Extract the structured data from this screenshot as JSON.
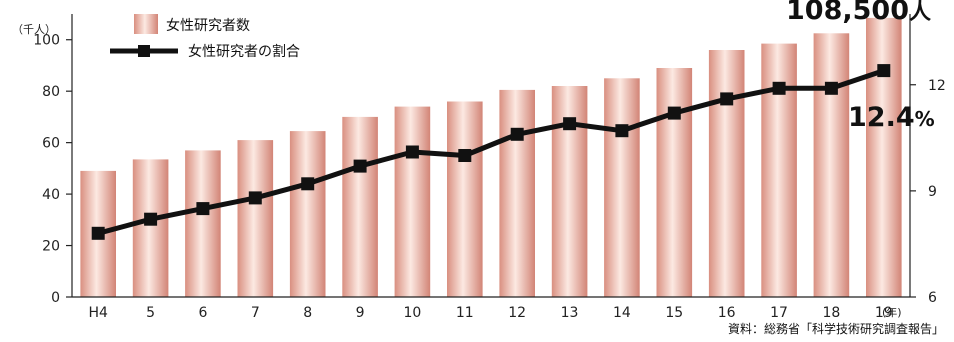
{
  "chart_data": {
    "type": "bar+line",
    "categories": [
      "H4",
      "5",
      "6",
      "7",
      "8",
      "9",
      "10",
      "11",
      "12",
      "13",
      "14",
      "15",
      "16",
      "17",
      "18",
      "19"
    ],
    "x_unit_label": "(年)",
    "series": [
      {
        "name": "女性研究者数",
        "type": "bar",
        "axis": "left",
        "values": [
          49,
          53.5,
          57,
          61,
          64.5,
          70,
          74,
          76,
          80.5,
          82,
          85,
          89,
          96,
          98.5,
          102.5,
          108.5
        ]
      },
      {
        "name": "女性研究者の割合",
        "type": "line",
        "axis": "right",
        "values": [
          7.8,
          8.2,
          8.5,
          8.8,
          9.2,
          9.7,
          10.1,
          10.0,
          10.6,
          10.9,
          10.7,
          11.2,
          11.6,
          11.9,
          11.9,
          12.4
        ]
      }
    ],
    "y_left": {
      "unit_label": "（千人）",
      "ylim": [
        0,
        110
      ],
      "ticks": [
        0,
        20,
        40,
        60,
        80,
        100
      ]
    },
    "y_right": {
      "ylim": [
        6,
        14
      ],
      "ticks": [
        6,
        9,
        12
      ]
    },
    "callouts": {
      "count": "108,500",
      "count_unit": "人",
      "ratio": "12.4",
      "ratio_unit": "%"
    },
    "source": "資料：総務省「科学技術研究調査報告」",
    "legend_position": "top-left",
    "grid": false,
    "colors": {
      "bar_light": "#fce9e2",
      "bar_dark": "#d98f80",
      "line": "#111111"
    }
  }
}
